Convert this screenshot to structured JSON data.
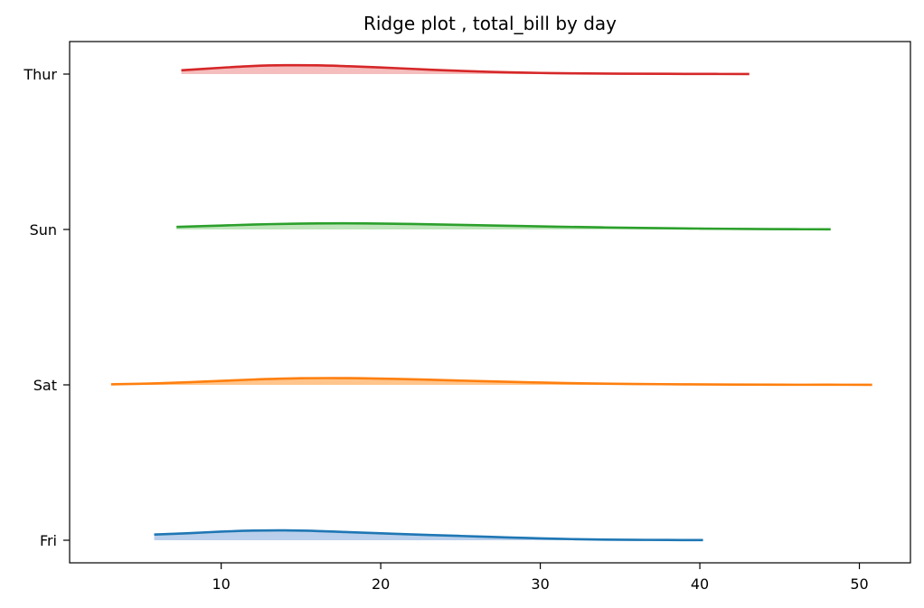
{
  "chart_data": {
    "type": "ridge",
    "title": "Ridge plot , total_bill by day",
    "xlabel": "",
    "ylabel": "",
    "xlim": [
      0.5,
      53.2
    ],
    "xticks": [
      10,
      20,
      30,
      40,
      50
    ],
    "categories": [
      "Fri",
      "Sat",
      "Sun",
      "Thur"
    ],
    "grid": false,
    "legend": "none",
    "series": [
      {
        "day": "Fri",
        "color": "#1f77b4",
        "fill": "#aec7e8",
        "x": [
          5.8,
          8.0,
          10.0,
          12.0,
          14.0,
          16.0,
          18.0,
          20.0,
          22.0,
          24.0,
          26.0,
          28.0,
          30.0,
          32.0,
          34.0,
          36.0,
          38.0,
          40.2
        ],
        "density": [
          0.045,
          0.056,
          0.068,
          0.076,
          0.078,
          0.073,
          0.064,
          0.055,
          0.046,
          0.038,
          0.03,
          0.022,
          0.015,
          0.009,
          0.005,
          0.003,
          0.002,
          0.001
        ]
      },
      {
        "day": "Sat",
        "color": "#ff7f0e",
        "fill": "#ffbb78",
        "x": [
          3.1,
          6.0,
          9.0,
          12.0,
          15.0,
          18.0,
          21.0,
          24.0,
          27.0,
          30.0,
          33.0,
          36.0,
          39.0,
          42.0,
          45.0,
          48.0,
          50.8
        ],
        "density": [
          0.004,
          0.012,
          0.026,
          0.042,
          0.052,
          0.053,
          0.047,
          0.037,
          0.027,
          0.018,
          0.011,
          0.007,
          0.004,
          0.002,
          0.001,
          0.001,
          0.0005
        ]
      },
      {
        "day": "Sun",
        "color": "#2ca02c",
        "fill": "#b5e0b0",
        "x": [
          7.2,
          10.0,
          13.0,
          16.0,
          19.0,
          22.0,
          25.0,
          28.0,
          31.0,
          34.0,
          37.0,
          40.0,
          43.0,
          46.0,
          48.2
        ],
        "density": [
          0.02,
          0.031,
          0.042,
          0.048,
          0.048,
          0.043,
          0.036,
          0.029,
          0.022,
          0.016,
          0.011,
          0.007,
          0.004,
          0.002,
          0.001
        ]
      },
      {
        "day": "Thur",
        "color": "#d62728",
        "fill": "#f3b2b2",
        "x": [
          7.5,
          10.0,
          12.0,
          14.0,
          16.0,
          18.0,
          20.0,
          22.0,
          24.0,
          26.0,
          28.0,
          30.0,
          32.0,
          35.0,
          38.0,
          41.0,
          43.1
        ],
        "density": [
          0.03,
          0.05,
          0.064,
          0.07,
          0.069,
          0.062,
          0.052,
          0.041,
          0.03,
          0.021,
          0.014,
          0.009,
          0.006,
          0.003,
          0.002,
          0.001,
          0.0005
        ]
      }
    ]
  }
}
